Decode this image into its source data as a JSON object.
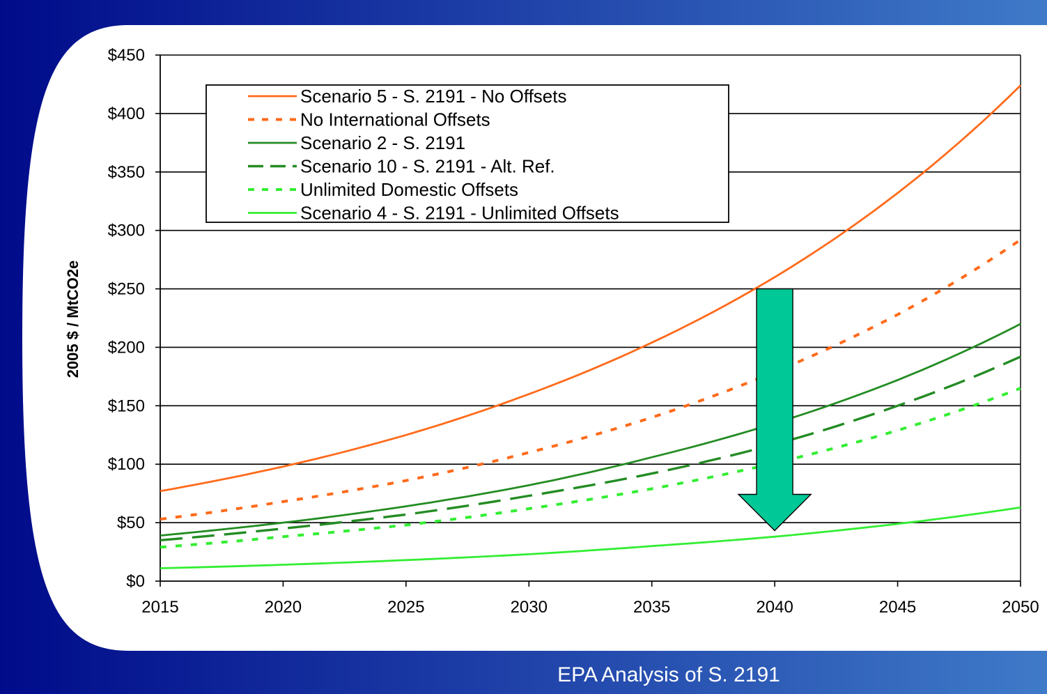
{
  "footer": {
    "text": "EPA Analysis of S. 2191"
  },
  "colors": {
    "background_dark": "#000b8a",
    "background_light": "#3f7ac8",
    "orange": "#ff6a1a",
    "dark_green": "#238c23",
    "light_green": "#33ee33",
    "arrow_fill": "#00c896"
  },
  "chart_data": {
    "type": "line",
    "title": "",
    "xlabel": "",
    "ylabel": "2005 $ / MtCO2e",
    "xlim": [
      2015,
      2050
    ],
    "ylim": [
      0,
      450
    ],
    "xticks": [
      "2015",
      "2020",
      "2025",
      "2030",
      "2035",
      "2040",
      "2045",
      "2050"
    ],
    "xtick_values": [
      2015,
      2020,
      2025,
      2030,
      2035,
      2040,
      2045,
      2050
    ],
    "yticks": [
      "$0",
      "$50",
      "$100",
      "$150",
      "$200",
      "$250",
      "$300",
      "$350",
      "$400",
      "$450"
    ],
    "ytick_values": [
      0,
      50,
      100,
      150,
      200,
      250,
      300,
      350,
      400,
      450
    ],
    "grid": "horizontal",
    "legend_position": "top-left",
    "x": [
      2015,
      2020,
      2025,
      2030,
      2035,
      2040,
      2045,
      2050
    ],
    "series": [
      {
        "name": "Scenario 5 - S. 2191 - No Offsets",
        "color": "#ff6a1a",
        "style": "solid",
        "values": [
          77,
          98,
          125,
          160,
          204,
          260,
          332,
          424
        ]
      },
      {
        "name": "No International Offsets",
        "color": "#ff6a1a",
        "style": "dotted",
        "values": [
          53,
          68,
          86,
          110,
          140,
          179,
          228,
          292
        ]
      },
      {
        "name": "Scenario 2 - S. 2191",
        "color": "#238c23",
        "style": "solid",
        "values": [
          39,
          50,
          64,
          82,
          106,
          135,
          172,
          220
        ]
      },
      {
        "name": "Scenario 10 - S. 2191 - Alt. Ref.",
        "color": "#238c23",
        "style": "dashed",
        "values": [
          35,
          45,
          57,
          73,
          92,
          117,
          150,
          192
        ]
      },
      {
        "name": "Unlimited Domestic Offsets",
        "color": "#33ee33",
        "style": "dotted",
        "values": [
          29,
          38,
          48,
          62,
          79,
          101,
          129,
          165
        ]
      },
      {
        "name": "Scenario 4 - S. 2191 - Unlimited Offsets",
        "color": "#33ee33",
        "style": "solid",
        "values": [
          11,
          14,
          18,
          23,
          30,
          38,
          49,
          63
        ]
      }
    ],
    "annotation": {
      "type": "down-arrow",
      "x": 2040,
      "from_y": 250,
      "to_y": 45,
      "color": "#00c896"
    }
  }
}
